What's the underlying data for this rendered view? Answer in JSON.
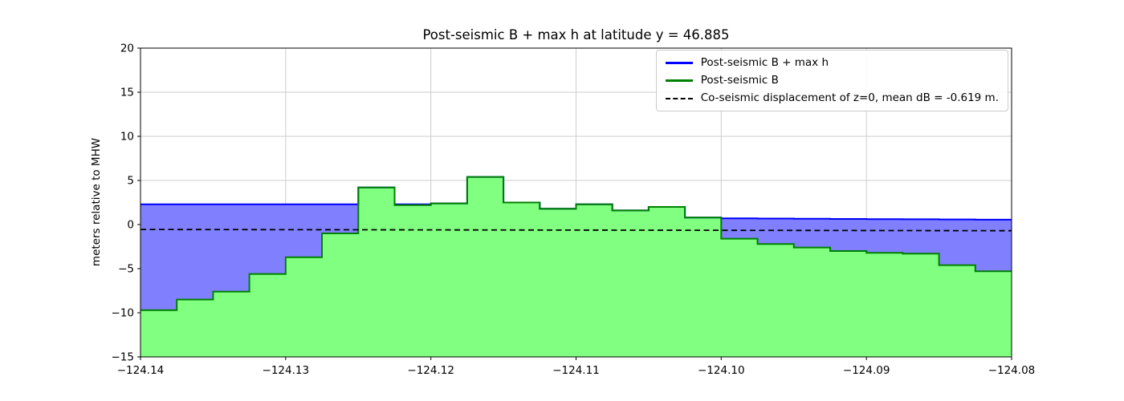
{
  "chart_data": {
    "type": "area",
    "title": "Post-seismic B + max h at latitude y = 46.885",
    "xlabel": "",
    "ylabel": "meters relative to MHW",
    "xlim": [
      -124.14,
      -124.08
    ],
    "ylim": [
      -15,
      20
    ],
    "grid": true,
    "xticks": {
      "values": [
        -124.14,
        -124.13,
        -124.12,
        -124.11,
        -124.1,
        -124.09,
        -124.08
      ],
      "labels": [
        "−124.14",
        "−124.13",
        "−124.12",
        "−124.11",
        "−124.10",
        "−124.09",
        "−124.08"
      ]
    },
    "yticks": {
      "values": [
        -15,
        -10,
        -5,
        0,
        5,
        10,
        15,
        20
      ],
      "labels": [
        "−15",
        "−10",
        "−5",
        "0",
        "5",
        "10",
        "15",
        "20"
      ]
    },
    "x_edges": [
      -124.14,
      -124.1375,
      -124.135,
      -124.1325,
      -124.13,
      -124.1275,
      -124.125,
      -124.1225,
      -124.12,
      -124.1175,
      -124.115,
      -124.1125,
      -124.11,
      -124.1075,
      -124.105,
      -124.1025,
      -124.1,
      -124.0975,
      -124.095,
      -124.0925,
      -124.09,
      -124.0875,
      -124.085,
      -124.0825,
      -124.08
    ],
    "series": [
      {
        "id": "post-seismic-b-plus-max-h",
        "name": "Post-seismic B + max h",
        "kind": "step",
        "values": [
          2.3,
          2.3,
          2.3,
          2.3,
          2.3,
          2.3,
          4.2,
          2.3,
          2.4,
          5.4,
          2.5,
          1.8,
          2.3,
          1.6,
          2.0,
          0.8,
          0.7,
          0.68,
          0.66,
          0.64,
          0.62,
          0.6,
          0.58,
          0.55
        ],
        "fill": "#8080ff",
        "stroke": "#0000ff"
      },
      {
        "id": "post-seismic-b",
        "name": "Post-seismic B",
        "kind": "step",
        "values": [
          -9.7,
          -8.5,
          -7.6,
          -5.6,
          -3.7,
          -1.0,
          4.2,
          2.2,
          2.4,
          5.4,
          2.5,
          1.8,
          2.3,
          1.6,
          2.0,
          0.8,
          -1.6,
          -2.2,
          -2.6,
          -3.0,
          -3.2,
          -3.3,
          -4.6,
          -5.3
        ],
        "fill": "#80ff80",
        "stroke": "#008000"
      },
      {
        "id": "co-seismic-displacement",
        "name": "Co-seismic displacement of z=0, mean dB = -0.619 m.",
        "kind": "line",
        "x": [
          -124.14,
          -124.08
        ],
        "y": [
          -0.55,
          -0.7
        ],
        "stroke": "#000000",
        "dash": true
      }
    ],
    "legend": {
      "position": "upper right",
      "entries": [
        {
          "label": "Post-seismic B + max h",
          "color": "#0000ff",
          "dash": false
        },
        {
          "label": "Post-seismic B",
          "color": "#008000",
          "dash": false
        },
        {
          "label": "Co-seismic displacement of z=0, mean dB = -0.619 m.",
          "color": "#000000",
          "dash": true
        }
      ]
    }
  }
}
